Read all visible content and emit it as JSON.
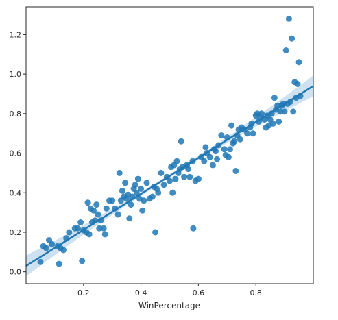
{
  "chart_data": {
    "type": "scatter",
    "title": "",
    "xlabel": "WinPercentage",
    "ylabel": "",
    "xlim": [
      0.0,
      1.0
    ],
    "ylim": [
      -0.06,
      1.34
    ],
    "x_ticks": [
      0.2,
      0.4,
      0.6,
      0.8
    ],
    "y_ticks": [
      0.0,
      0.2,
      0.4,
      0.6,
      0.8,
      1.0,
      1.2
    ],
    "x_tick_labels": [
      "0.2",
      "0.4",
      "0.6",
      "0.8"
    ],
    "y_tick_labels": [
      "0.0",
      "0.2",
      "0.4",
      "0.6",
      "0.8",
      "1.0",
      "1.2"
    ],
    "grid": false,
    "colors": {
      "points": "#1f77b4",
      "regression": "#1f77b4",
      "band": "#a6c8e5"
    },
    "regression": {
      "x": [
        0.0,
        1.0
      ],
      "y": [
        0.03,
        0.94
      ]
    },
    "points": [
      [
        0.05,
        0.05
      ],
      [
        0.06,
        0.13
      ],
      [
        0.07,
        0.12
      ],
      [
        0.08,
        0.16
      ],
      [
        0.09,
        0.14
      ],
      [
        0.11,
        0.13
      ],
      [
        0.115,
        0.04
      ],
      [
        0.12,
        0.12
      ],
      [
        0.13,
        0.11
      ],
      [
        0.14,
        0.17
      ],
      [
        0.15,
        0.2
      ],
      [
        0.17,
        0.22
      ],
      [
        0.18,
        0.22
      ],
      [
        0.19,
        0.25
      ],
      [
        0.195,
        0.055
      ],
      [
        0.2,
        0.21
      ],
      [
        0.21,
        0.2
      ],
      [
        0.215,
        0.35
      ],
      [
        0.22,
        0.19
      ],
      [
        0.225,
        0.32
      ],
      [
        0.23,
        0.25
      ],
      [
        0.235,
        0.31
      ],
      [
        0.24,
        0.26
      ],
      [
        0.245,
        0.34
      ],
      [
        0.25,
        0.29
      ],
      [
        0.255,
        0.22
      ],
      [
        0.26,
        0.26
      ],
      [
        0.27,
        0.22
      ],
      [
        0.275,
        0.19
      ],
      [
        0.28,
        0.32
      ],
      [
        0.29,
        0.36
      ],
      [
        0.3,
        0.36
      ],
      [
        0.31,
        0.32
      ],
      [
        0.32,
        0.29
      ],
      [
        0.325,
        0.5
      ],
      [
        0.33,
        0.36
      ],
      [
        0.335,
        0.41
      ],
      [
        0.34,
        0.38
      ],
      [
        0.345,
        0.45
      ],
      [
        0.35,
        0.37
      ],
      [
        0.355,
        0.39
      ],
      [
        0.36,
        0.27
      ],
      [
        0.365,
        0.34
      ],
      [
        0.37,
        0.38
      ],
      [
        0.375,
        0.42
      ],
      [
        0.38,
        0.44
      ],
      [
        0.385,
        0.4
      ],
      [
        0.39,
        0.47
      ],
      [
        0.395,
        0.37
      ],
      [
        0.4,
        0.42
      ],
      [
        0.405,
        0.31
      ],
      [
        0.41,
        0.36
      ],
      [
        0.42,
        0.45
      ],
      [
        0.43,
        0.37
      ],
      [
        0.44,
        0.38
      ],
      [
        0.445,
        0.43
      ],
      [
        0.45,
        0.2
      ],
      [
        0.455,
        0.42
      ],
      [
        0.46,
        0.4
      ],
      [
        0.47,
        0.5
      ],
      [
        0.48,
        0.44
      ],
      [
        0.49,
        0.48
      ],
      [
        0.5,
        0.46
      ],
      [
        0.505,
        0.53
      ],
      [
        0.51,
        0.4
      ],
      [
        0.515,
        0.54
      ],
      [
        0.52,
        0.47
      ],
      [
        0.525,
        0.56
      ],
      [
        0.53,
        0.5
      ],
      [
        0.535,
        0.52
      ],
      [
        0.54,
        0.66
      ],
      [
        0.545,
        0.53
      ],
      [
        0.55,
        0.48
      ],
      [
        0.56,
        0.54
      ],
      [
        0.565,
        0.52
      ],
      [
        0.57,
        0.48
      ],
      [
        0.58,
        0.56
      ],
      [
        0.582,
        0.22
      ],
      [
        0.59,
        0.46
      ],
      [
        0.6,
        0.47
      ],
      [
        0.61,
        0.58
      ],
      [
        0.62,
        0.56
      ],
      [
        0.625,
        0.63
      ],
      [
        0.63,
        0.6
      ],
      [
        0.64,
        0.58
      ],
      [
        0.65,
        0.54
      ],
      [
        0.655,
        0.62
      ],
      [
        0.66,
        0.61
      ],
      [
        0.665,
        0.57
      ],
      [
        0.67,
        0.64
      ],
      [
        0.68,
        0.69
      ],
      [
        0.69,
        0.62
      ],
      [
        0.695,
        0.59
      ],
      [
        0.7,
        0.68
      ],
      [
        0.705,
        0.58
      ],
      [
        0.71,
        0.62
      ],
      [
        0.715,
        0.74
      ],
      [
        0.72,
        0.65
      ],
      [
        0.725,
        0.66
      ],
      [
        0.73,
        0.51
      ],
      [
        0.735,
        0.69
      ],
      [
        0.74,
        0.72
      ],
      [
        0.745,
        0.67
      ],
      [
        0.75,
        0.73
      ],
      [
        0.76,
        0.72
      ],
      [
        0.77,
        0.7
      ],
      [
        0.78,
        0.73
      ],
      [
        0.785,
        0.75
      ],
      [
        0.79,
        0.7
      ],
      [
        0.8,
        0.79
      ],
      [
        0.805,
        0.8
      ],
      [
        0.81,
        0.76
      ],
      [
        0.815,
        0.78
      ],
      [
        0.82,
        0.8
      ],
      [
        0.83,
        0.77
      ],
      [
        0.835,
        0.73
      ],
      [
        0.84,
        0.79
      ],
      [
        0.845,
        0.74
      ],
      [
        0.85,
        0.77
      ],
      [
        0.855,
        0.8
      ],
      [
        0.86,
        0.75
      ],
      [
        0.865,
        0.88
      ],
      [
        0.87,
        0.82
      ],
      [
        0.875,
        0.84
      ],
      [
        0.88,
        0.76
      ],
      [
        0.885,
        0.81
      ],
      [
        0.89,
        0.84
      ],
      [
        0.895,
        0.85
      ],
      [
        0.9,
        0.81
      ],
      [
        0.905,
        1.12
      ],
      [
        0.91,
        0.85
      ],
      [
        0.915,
        1.28
      ],
      [
        0.92,
        0.86
      ],
      [
        0.925,
        1.18
      ],
      [
        0.93,
        0.81
      ],
      [
        0.935,
        0.96
      ],
      [
        0.94,
        0.88
      ],
      [
        0.945,
        0.95
      ],
      [
        0.95,
        1.06
      ],
      [
        0.955,
        0.89
      ]
    ]
  }
}
